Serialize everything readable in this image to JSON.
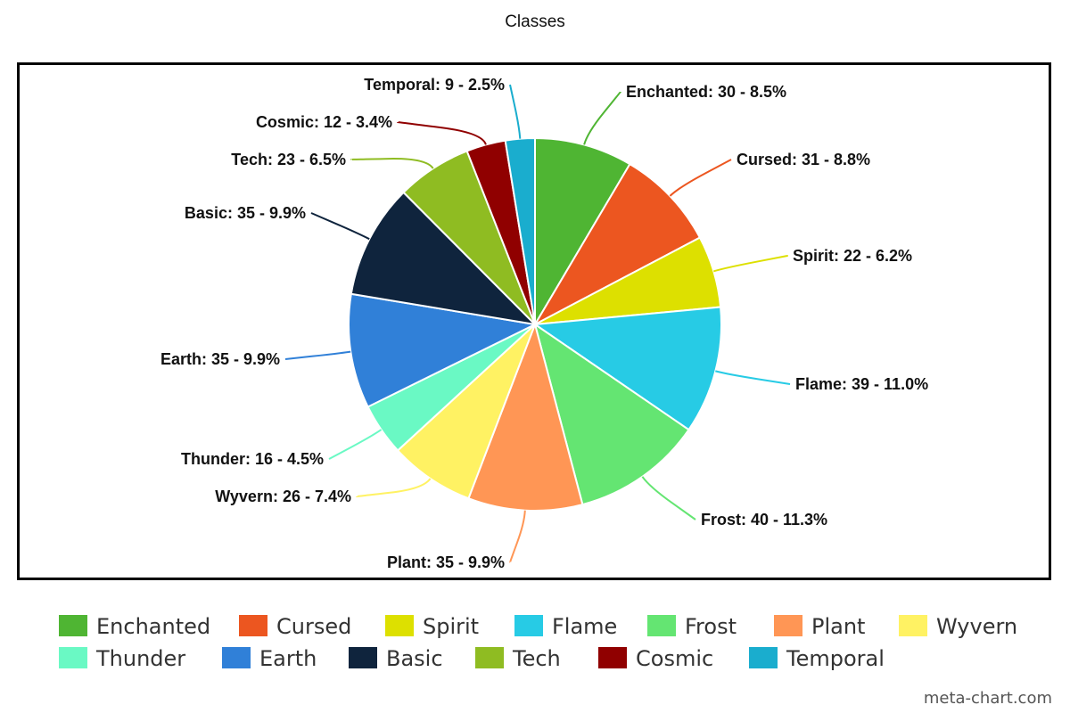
{
  "chart_data": {
    "type": "pie",
    "title": "Classes",
    "slices": [
      {
        "name": "Enchanted",
        "value": 30,
        "percent": "8.5%",
        "color": "#4fb533"
      },
      {
        "name": "Cursed",
        "value": 31,
        "percent": "8.8%",
        "color": "#ec5620"
      },
      {
        "name": "Spirit",
        "value": 22,
        "percent": "6.2%",
        "color": "#dde000"
      },
      {
        "name": "Flame",
        "value": 39,
        "percent": "11.0%",
        "color": "#27cbe5"
      },
      {
        "name": "Frost",
        "value": 40,
        "percent": "11.3%",
        "color": "#64e572"
      },
      {
        "name": "Plant",
        "value": 35,
        "percent": "9.9%",
        "color": "#ff9655"
      },
      {
        "name": "Wyvern",
        "value": 26,
        "percent": "7.4%",
        "color": "#fff263"
      },
      {
        "name": "Thunder",
        "value": 16,
        "percent": "4.5%",
        "color": "#6af9c4"
      },
      {
        "name": "Earth",
        "value": 35,
        "percent": "9.9%",
        "color": "#3080d8"
      },
      {
        "name": "Basic",
        "value": 35,
        "percent": "9.9%",
        "color": "#0f243d"
      },
      {
        "name": "Tech",
        "value": 23,
        "percent": "6.5%",
        "color": "#8fbc22"
      },
      {
        "name": "Cosmic",
        "value": 12,
        "percent": "3.4%",
        "color": "#900000"
      },
      {
        "name": "Temporal",
        "value": 9,
        "percent": "2.5%",
        "color": "#1aadce"
      }
    ],
    "legend_position": "bottom"
  },
  "watermark": "meta-chart.com"
}
